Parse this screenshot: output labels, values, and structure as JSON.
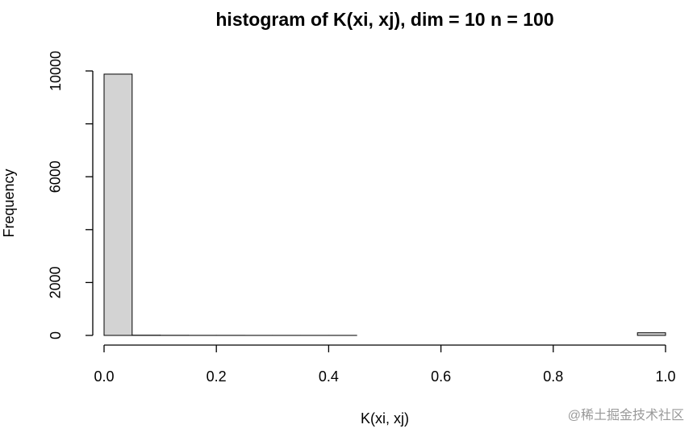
{
  "chart_data": {
    "type": "histogram",
    "title": "histogram of K(xi, xj), dim = 10 n = 100",
    "x_label": "K(xi, xj)",
    "y_label": "Frequency",
    "bins": [
      0,
      0.05,
      0.1,
      0.15,
      0.2,
      0.25,
      0.3,
      0.35,
      0.4,
      0.45,
      0.5,
      0.55,
      0.6,
      0.65,
      0.7,
      0.75,
      0.8,
      0.85,
      0.9,
      0.95,
      1.0
    ],
    "values": [
      9880,
      8,
      4,
      2,
      2,
      1,
      1,
      1,
      1,
      0,
      0,
      0,
      0,
      0,
      0,
      0,
      0,
      0,
      0,
      100
    ],
    "color": "#d3d3d3",
    "xlim": [
      0,
      1.0
    ],
    "xticks": [
      {
        "value": 0,
        "label": "0.0"
      },
      0.2,
      0.4,
      0.6,
      0.8,
      {
        "value": 1.0,
        "label": "1.0"
      }
    ],
    "ylim": [
      0,
      10000
    ],
    "yticks": [
      0,
      2000,
      {
        "value": 4000,
        "label": null
      },
      6000,
      {
        "value": 8000,
        "label": null
      },
      10000
    ],
    "watermark": "@稀土掘金技术社区"
  }
}
